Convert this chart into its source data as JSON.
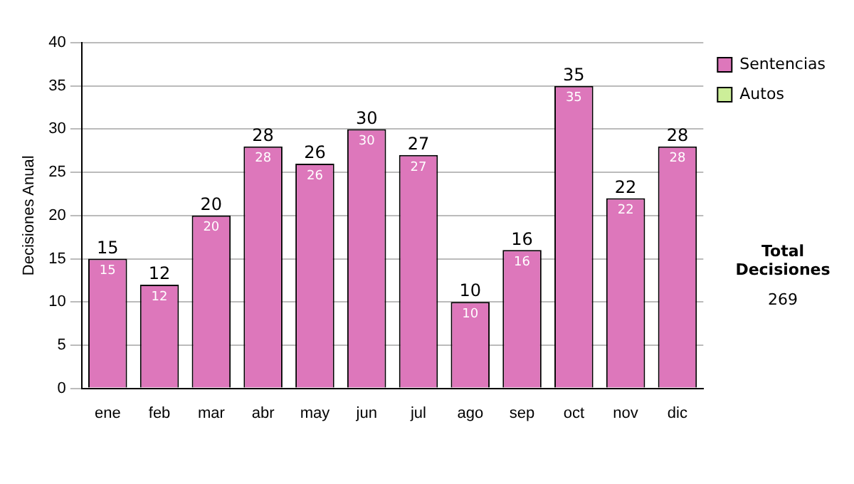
{
  "chart_data": {
    "type": "bar",
    "stacked": true,
    "ylabel": "Decisiones Anual",
    "categories": [
      "ene",
      "feb",
      "mar",
      "abr",
      "may",
      "jun",
      "jul",
      "ago",
      "sep",
      "oct",
      "nov",
      "dic"
    ],
    "series": [
      {
        "name": "Sentencias",
        "color": "#dd77bb",
        "values": [
          15,
          12,
          20,
          28,
          26,
          30,
          27,
          10,
          16,
          35,
          22,
          28
        ],
        "value_labels": [
          "15",
          "12",
          "20",
          "28",
          "26",
          "30",
          "27",
          "10",
          "16",
          "35",
          "22",
          "28"
        ]
      },
      {
        "name": "Autos",
        "color": "#ccee99",
        "values": [
          0,
          0,
          0,
          0,
          0,
          0,
          0,
          0,
          0,
          0,
          0,
          0
        ]
      }
    ],
    "totals": [
      "15",
      "12",
      "20",
      "28",
      "26",
      "30",
      "27",
      "10",
      "16",
      "35",
      "22",
      "28"
    ],
    "ylim": [
      0,
      40
    ],
    "yticks": [
      0,
      5,
      10,
      15,
      20,
      25,
      30,
      35,
      40
    ],
    "grid": "y",
    "legend": "right",
    "annotations": [
      "Total Decisiones",
      "269"
    ]
  }
}
